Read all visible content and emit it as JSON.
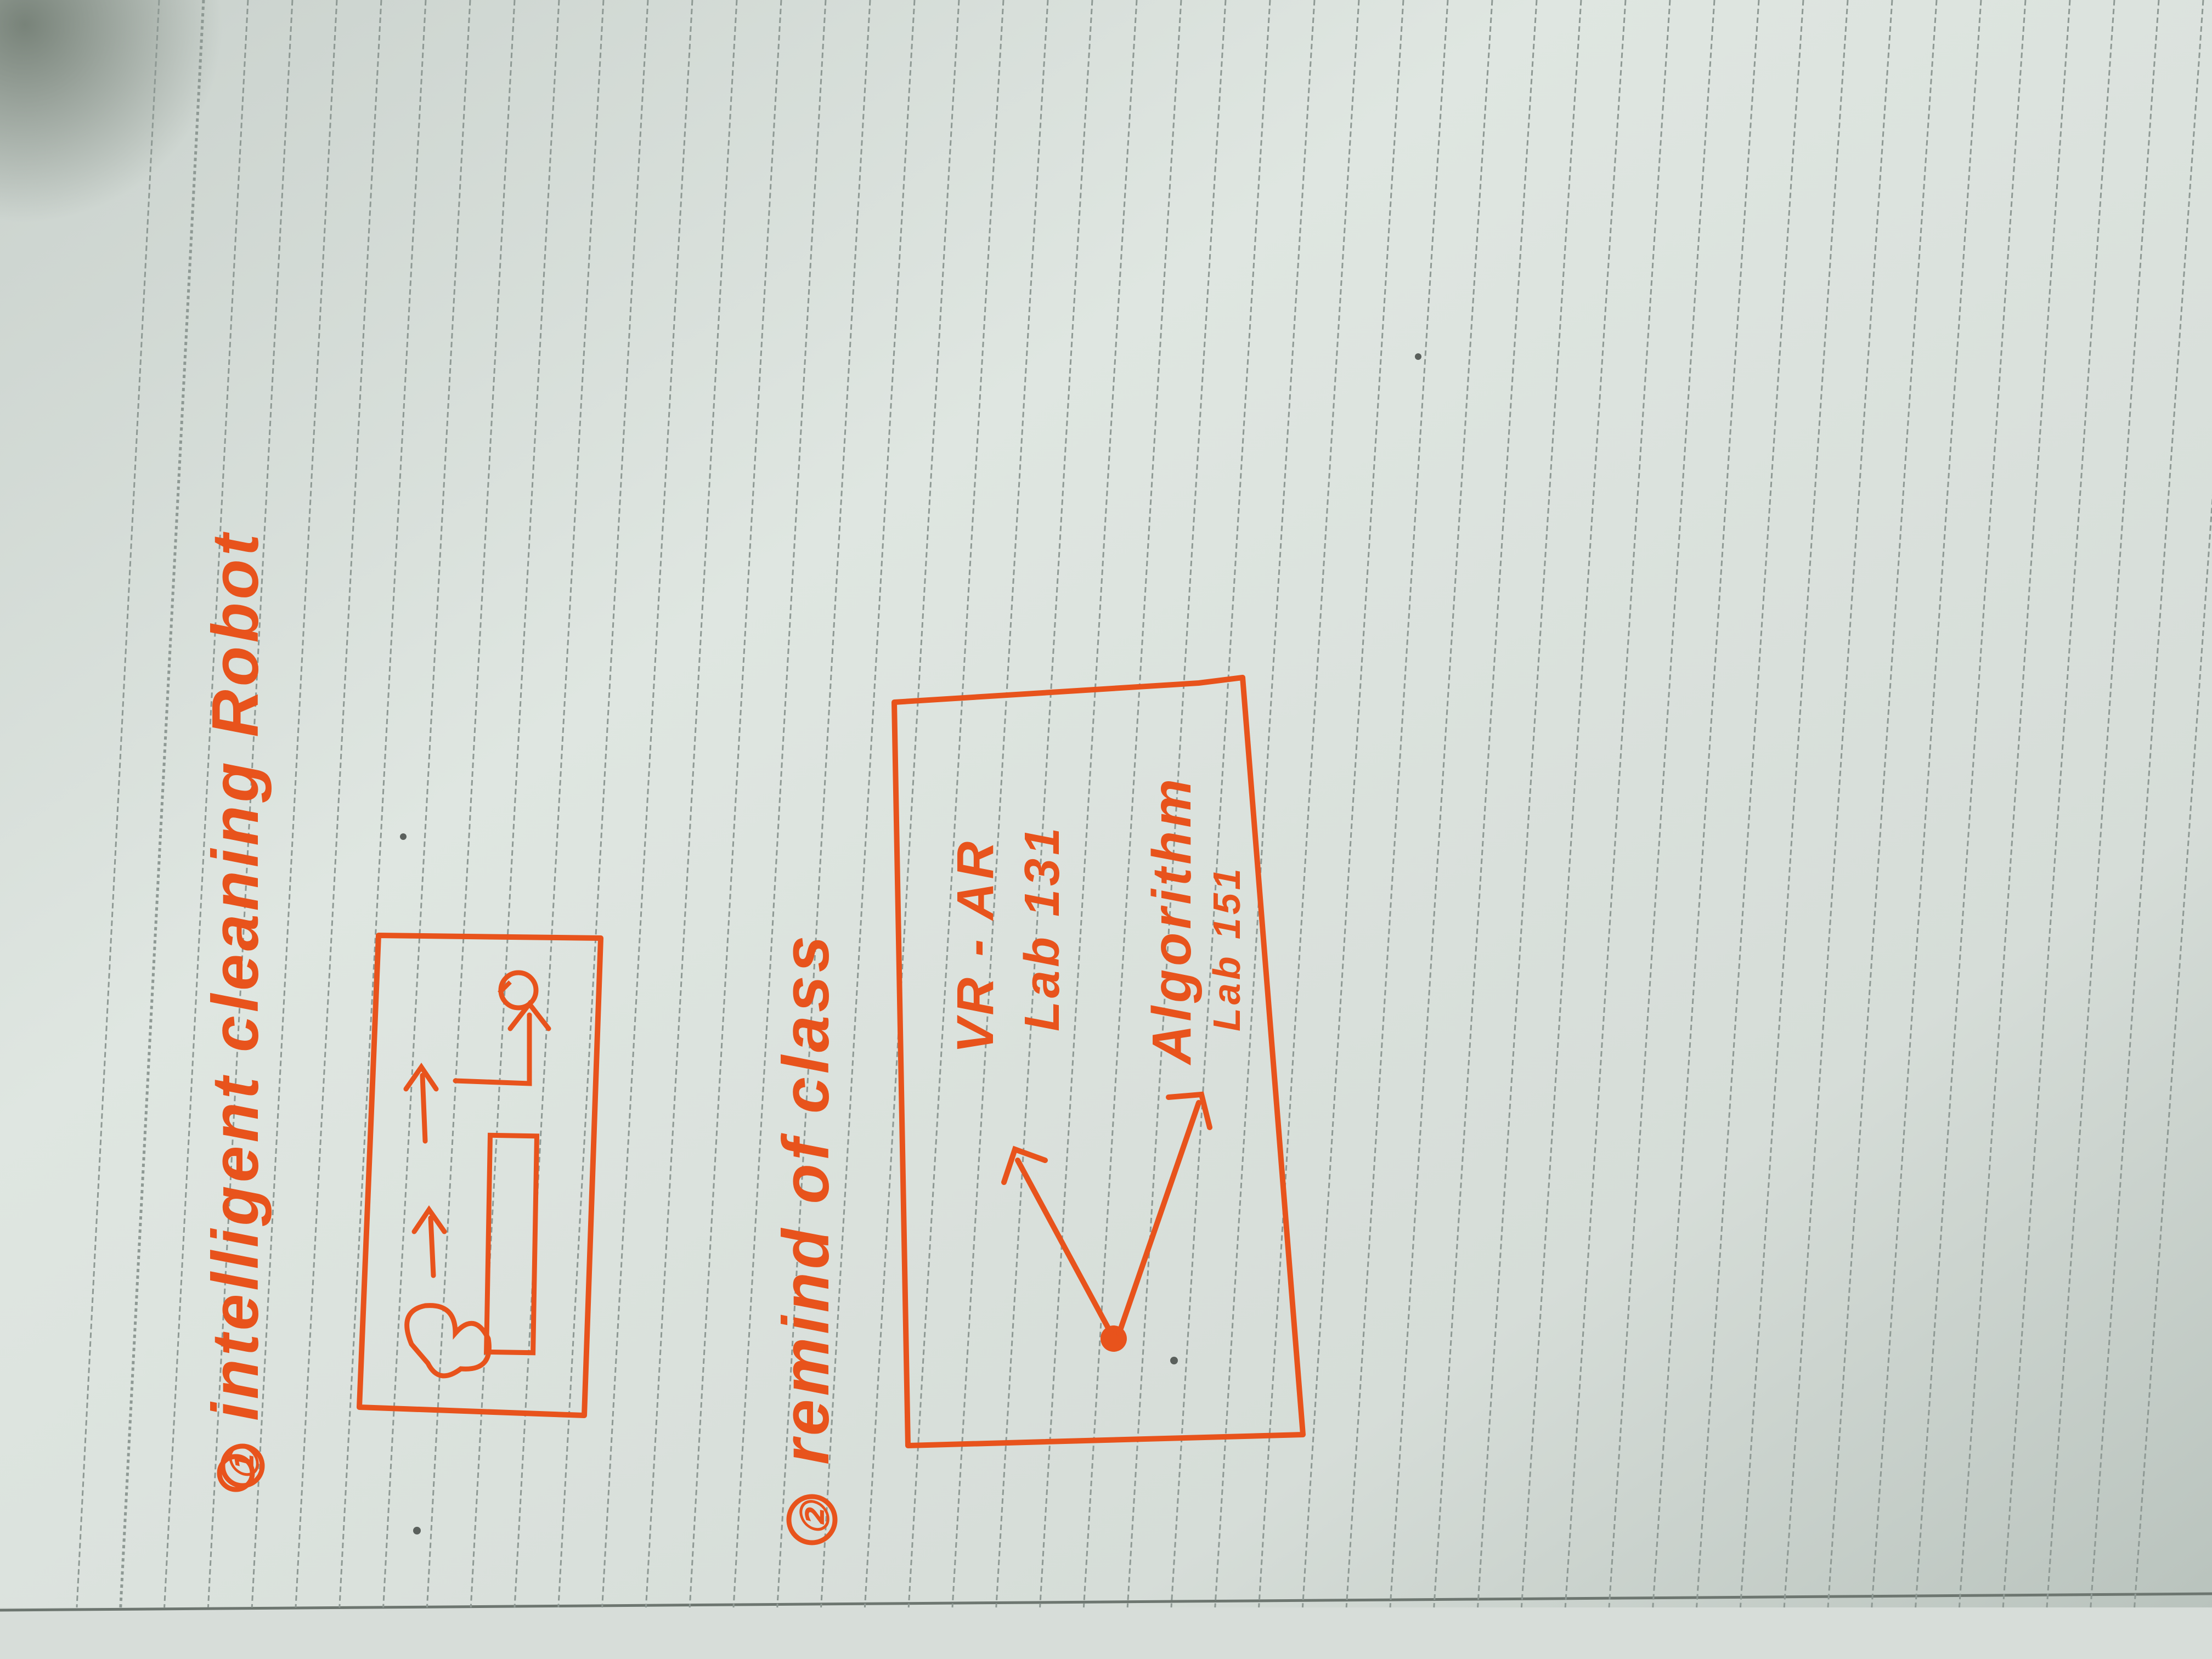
{
  "photo": {
    "subject": "notebook-page-sketch"
  },
  "colors": {
    "paper": "#dfe6e1",
    "paper_shadow": "#b9c3bd",
    "ruled_line": "#8e9994",
    "ink": "#e8531c",
    "table_edge": "#d7ddd9"
  },
  "notes": {
    "idea_1": {
      "number_label": "①",
      "title": "intelligent cleaning Robot"
    },
    "idea_2": {
      "number_label": "②",
      "title": "remind of class",
      "left_label_line1": "VR - AR",
      "left_label_line2": "Lab 131",
      "right_label_line1": "Algorithm",
      "right_label_line2": "Lab 151"
    }
  }
}
